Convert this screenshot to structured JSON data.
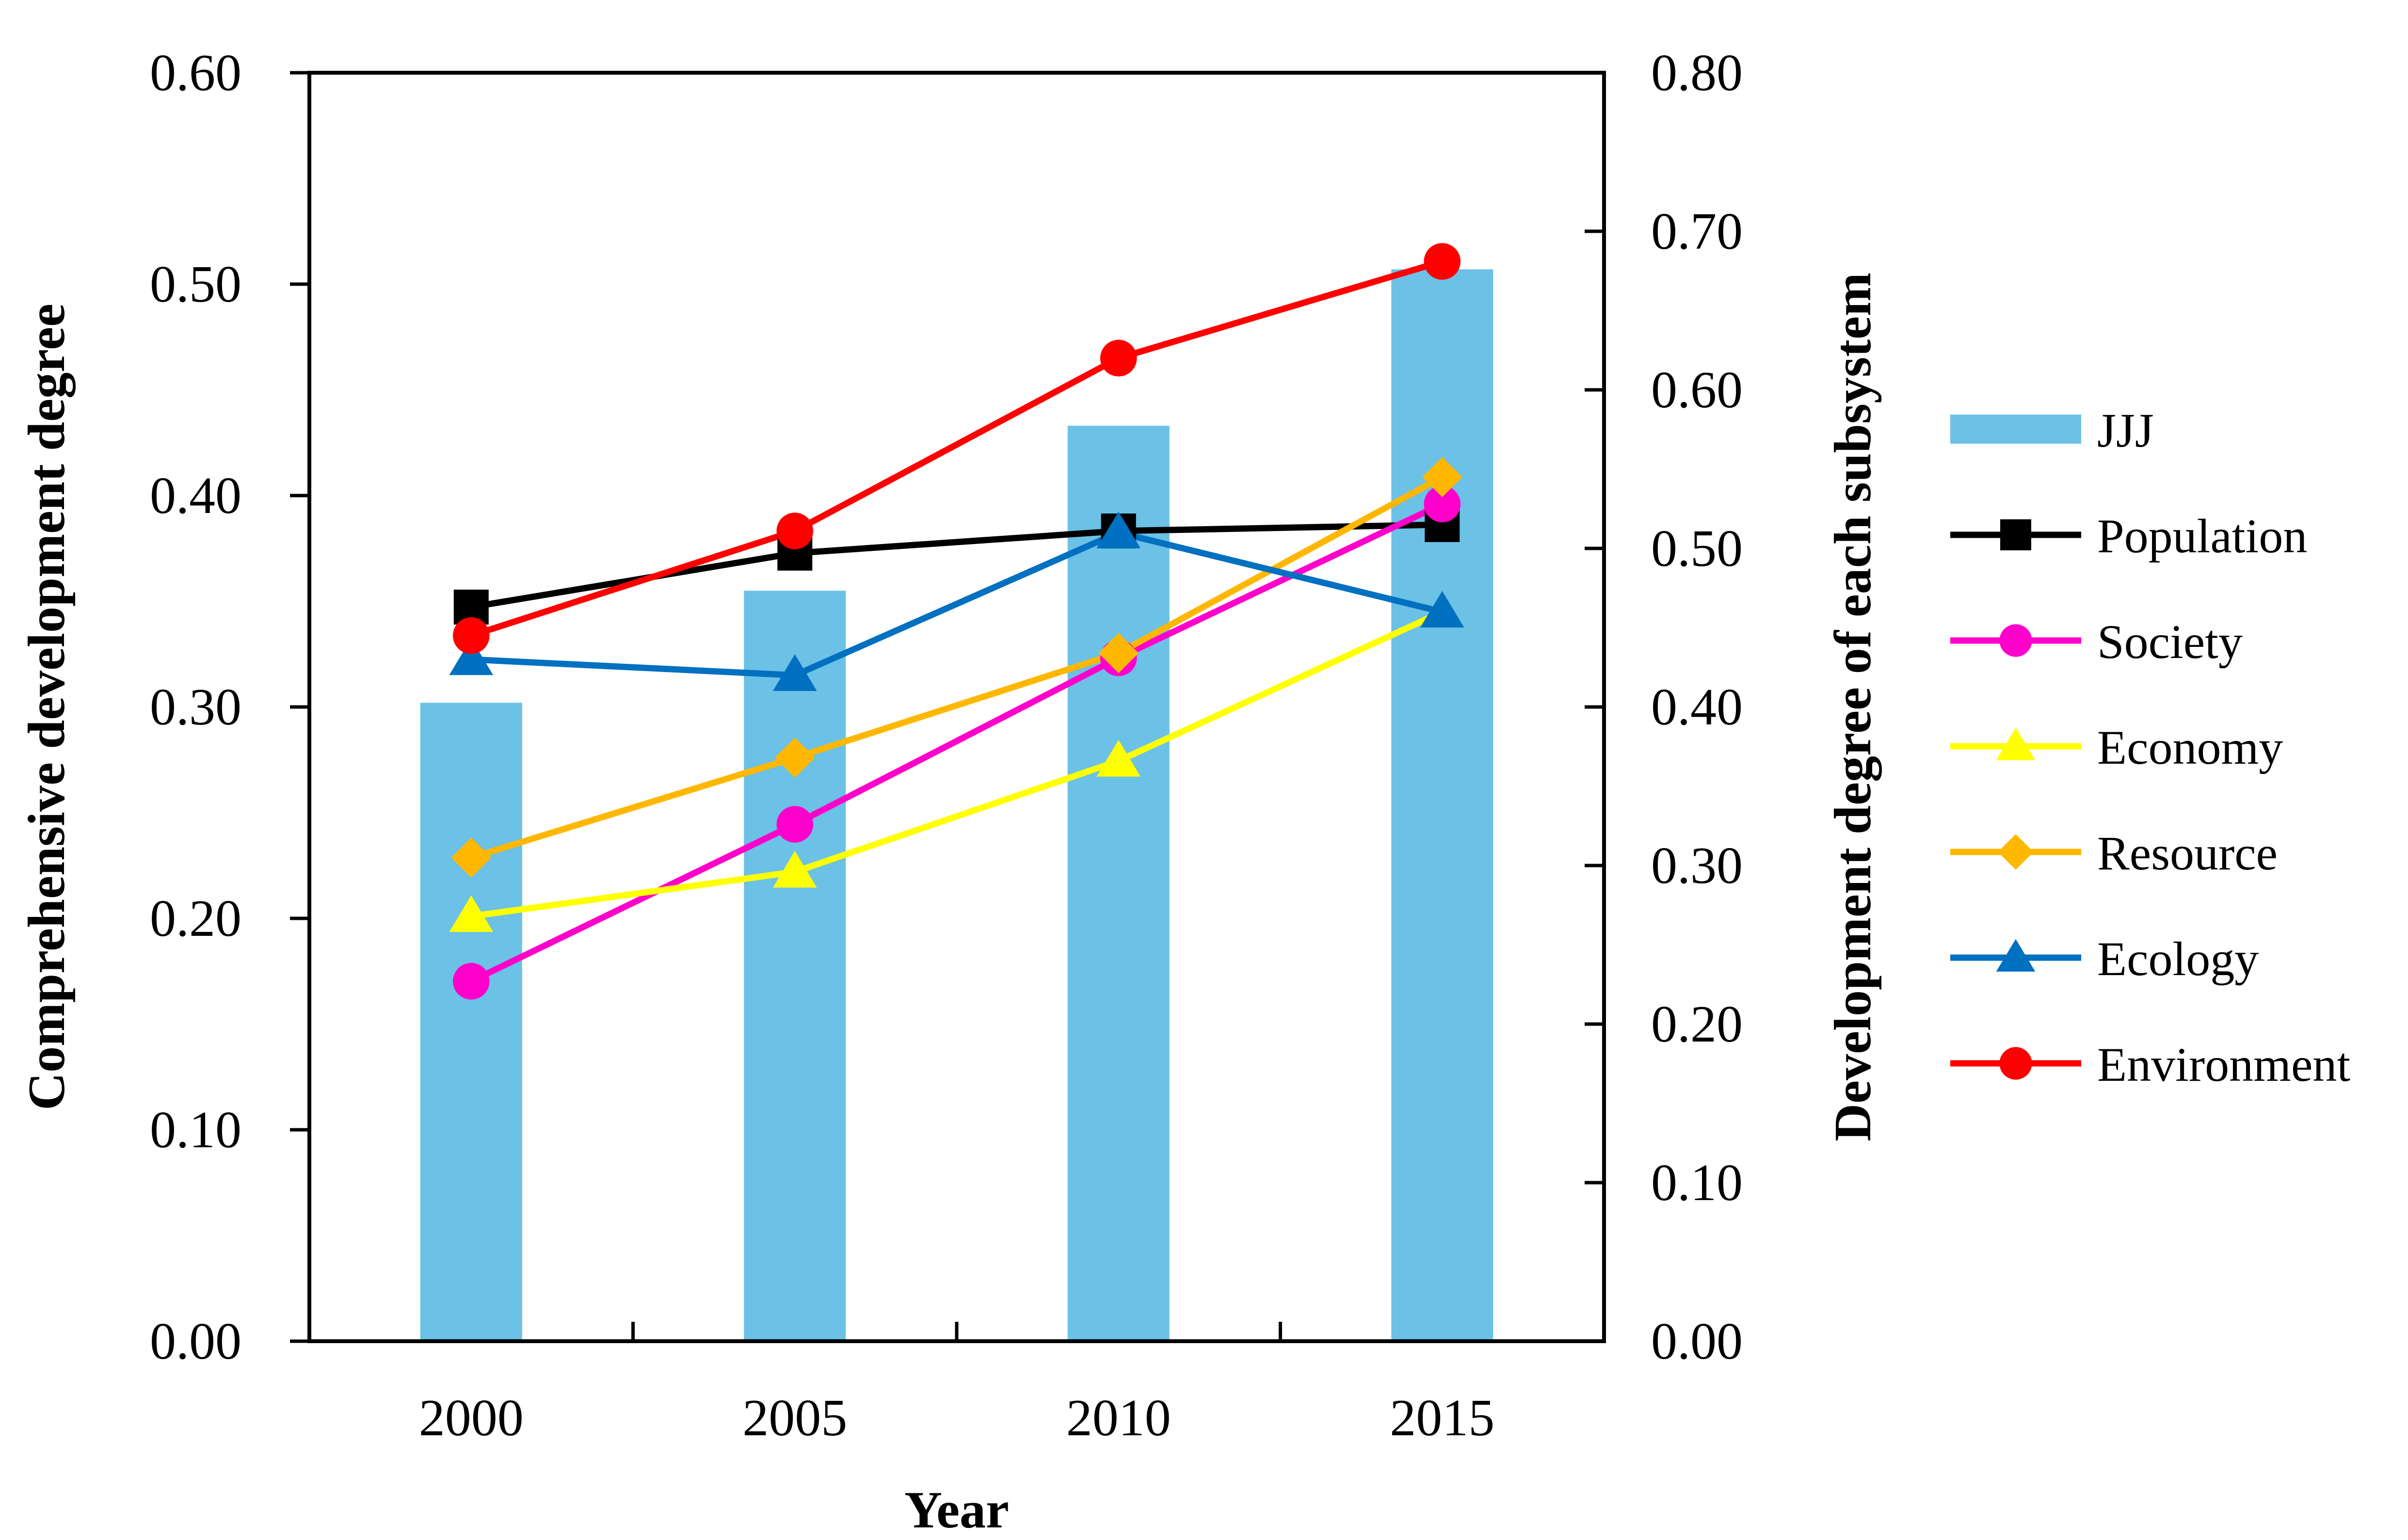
{
  "chart_data": {
    "type": "bar+line",
    "title": "",
    "xlabel": "Year",
    "ylabel_left": "Comprehensive development degree",
    "ylabel_right": "Development degree of each subsystem",
    "categories": [
      "2000",
      "2005",
      "2010",
      "2015"
    ],
    "ylim_left": [
      0,
      0.6
    ],
    "ylim_right": [
      0,
      0.8
    ],
    "yticks_left": [
      "0.00",
      "0.10",
      "0.20",
      "0.30",
      "0.40",
      "0.50",
      "0.60"
    ],
    "yticks_right": [
      "0.00",
      "0.10",
      "0.20",
      "0.30",
      "0.40",
      "0.50",
      "0.60",
      "0.70",
      "0.80"
    ],
    "grid": false,
    "legend_position": "right",
    "bars": {
      "name": "JJJ",
      "axis": "left",
      "color": "#6BC1E6",
      "values": [
        0.302,
        0.355,
        0.433,
        0.507
      ]
    },
    "series": [
      {
        "name": "Population",
        "axis": "right",
        "color": "#000000",
        "marker": "square",
        "values": [
          0.463,
          0.497,
          0.511,
          0.515
        ]
      },
      {
        "name": "Society",
        "axis": "right",
        "color": "#FF00CC",
        "marker": "circle",
        "values": [
          0.227,
          0.326,
          0.431,
          0.528
        ]
      },
      {
        "name": "Economy",
        "axis": "right",
        "color": "#FFFF00",
        "marker": "triangle",
        "values": [
          0.268,
          0.296,
          0.366,
          0.46
        ]
      },
      {
        "name": "Resource",
        "axis": "right",
        "color": "#FFB700",
        "marker": "diamond",
        "values": [
          0.305,
          0.368,
          0.434,
          0.545
        ]
      },
      {
        "name": "Ecology",
        "axis": "right",
        "color": "#0070C0",
        "marker": "triangle",
        "values": [
          0.43,
          0.42,
          0.51,
          0.46
        ]
      },
      {
        "name": "Environment",
        "axis": "right",
        "color": "#FF0000",
        "marker": "circle",
        "values": [
          0.445,
          0.511,
          0.62,
          0.681
        ]
      }
    ]
  }
}
